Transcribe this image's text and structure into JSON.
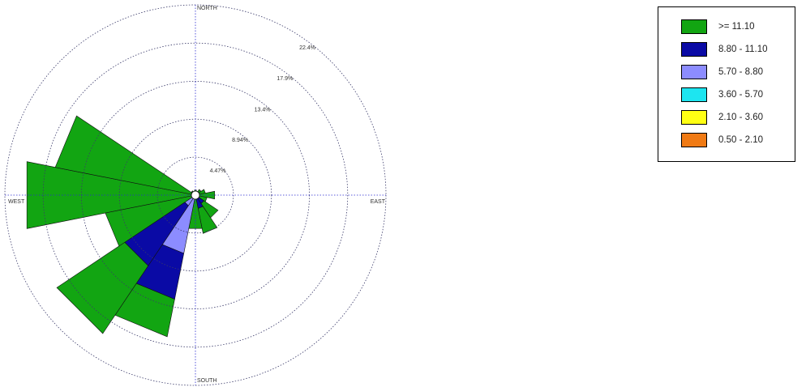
{
  "chart_data": {
    "type": "wind-rose",
    "units": "%",
    "rings": [
      "4.47%",
      "8.94%",
      "13.4%",
      "17.9%",
      "22.4%"
    ],
    "ring_values": [
      4.47,
      8.94,
      13.4,
      17.9,
      22.4
    ],
    "directions": {
      "north": "NORTH",
      "east": "EAST",
      "south": "SOUTH",
      "west": "WEST"
    },
    "grid": true,
    "legend_position": "top-right",
    "bins": [
      {
        "label": ">= 11.10",
        "color": "#12a512"
      },
      {
        "label": "8.80 - 11.10",
        "color": "#0a0aa5"
      },
      {
        "label": "5.70 - 8.80",
        "color": "#8c8cff"
      },
      {
        "label": "3.60 - 5.70",
        "color": "#1de5f0"
      },
      {
        "label": "2.10 - 3.60",
        "color": "#ffff14"
      },
      {
        "label": "0.50 - 2.10",
        "color": "#f07a14"
      }
    ],
    "sectors": [
      {
        "direction": "W",
        "bearing": 270,
        "bands": {
          ">= 11.10": 20.2
        }
      },
      {
        "direction": "WNW",
        "bearing": 292.5,
        "bands": {
          ">= 11.10": 16.8
        }
      },
      {
        "direction": "NW",
        "bearing": 315,
        "bands": {
          ">= 11.10": 0.6
        }
      },
      {
        "direction": "NNW",
        "bearing": 337.5,
        "bands": {
          ">= 11.10": 0.4
        }
      },
      {
        "direction": "N",
        "bearing": 0,
        "bands": {
          ">= 11.10": 0.6
        }
      },
      {
        "direction": "NNE",
        "bearing": 22.5,
        "bands": {
          ">= 11.10": 0.5
        }
      },
      {
        "direction": "NE",
        "bearing": 45,
        "bands": {
          ">= 11.10": 0.8
        }
      },
      {
        "direction": "ENE",
        "bearing": 67.5,
        "bands": {
          ">= 11.10": 1.2
        }
      },
      {
        "direction": "E",
        "bearing": 90,
        "bands": {
          ">= 11.10": 2.3
        }
      },
      {
        "direction": "ESE",
        "bearing": 112.5,
        "bands": {
          ">= 11.10": 1.4
        }
      },
      {
        "direction": "SE",
        "bearing": 135,
        "bands": {
          "8.80 - 11.10": 1.2,
          ">= 11.10": 2.0
        }
      },
      {
        "direction": "SSE",
        "bearing": 157.5,
        "bands": {
          "8.80 - 11.10": 1.6,
          ">= 11.10": 3.0
        }
      },
      {
        "direction": "S",
        "bearing": 180,
        "bands": {
          ">= 11.10": 4.0
        }
      },
      {
        "direction": "SSW",
        "bearing": 202.5,
        "bands": {
          "5.70 - 8.80": 7.0,
          "8.80 - 11.10": 5.5,
          ">= 11.10": 4.5
        }
      },
      {
        "direction": "SW",
        "bearing": 225,
        "bands": {
          "5.70 - 8.80": 1.5,
          "8.80 - 11.10": 8.5,
          ">= 11.10": 9.6
        }
      },
      {
        "direction": "WSW",
        "bearing": 247.5,
        "bands": {
          ">= 11.10": 10.8
        }
      }
    ]
  }
}
